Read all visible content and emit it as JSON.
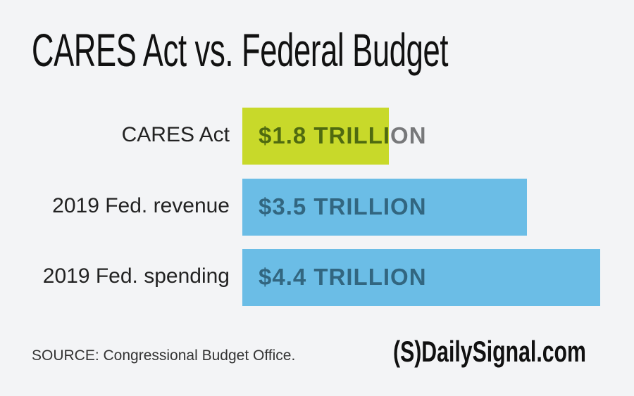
{
  "chart_data": {
    "type": "bar",
    "orientation": "horizontal",
    "title": "CARES Act vs. Federal Budget",
    "categories": [
      "CARES Act",
      "2019 Fed. revenue",
      "2019 Fed. spending"
    ],
    "values": [
      1.8,
      3.5,
      4.4
    ],
    "unit": "trillion USD",
    "data_labels": [
      "$1.8 TRILLION",
      "$3.5 TRILLION",
      "$4.4 TRILLION"
    ],
    "colors": [
      "#c8d92a",
      "#6bbde6",
      "#6bbde6"
    ],
    "label_colors": [
      "#4f6a10",
      "#326680",
      "#326680"
    ],
    "outside_label_color": "#77787a",
    "grid": false,
    "source": "SOURCE: Congressional Budget Office."
  },
  "logo": "(S)DailySignal.com"
}
